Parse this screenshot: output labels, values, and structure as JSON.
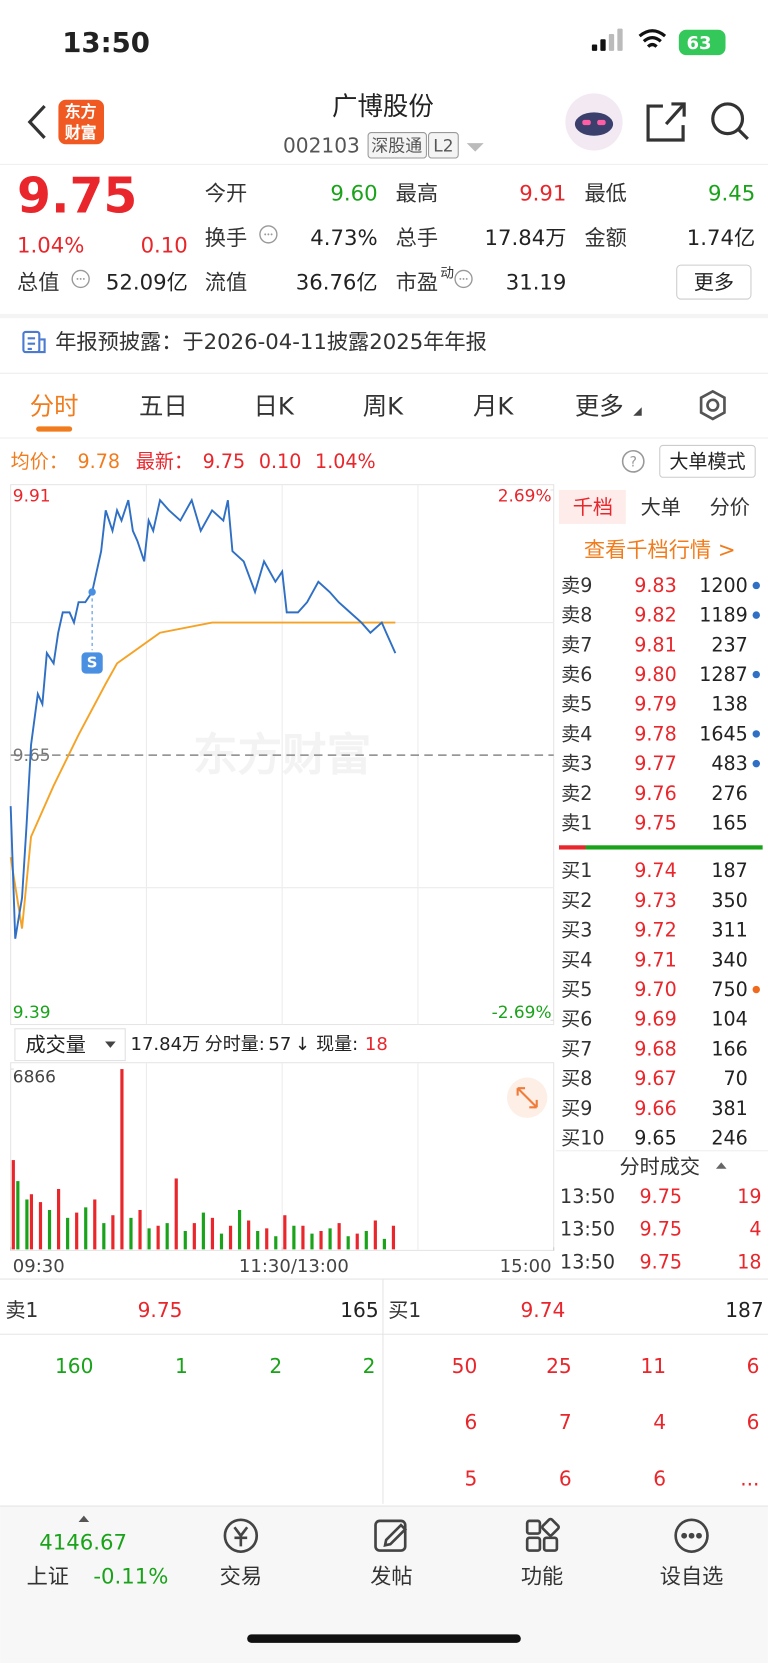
{
  "status_bar": {
    "time": "13:50",
    "battery": "63"
  },
  "header": {
    "logo": [
      "东方",
      "财富"
    ],
    "title": "广博股份",
    "code": "002103",
    "tags": [
      "深股通",
      "L2"
    ]
  },
  "quote": {
    "price": "9.75",
    "change_pct": "1.04%",
    "change": "0.10",
    "more_button": "更多",
    "rows": [
      [
        {
          "label": "今开",
          "value": "9.60",
          "color": "#1aa31a"
        },
        {
          "label": "最高",
          "value": "9.91",
          "color": "#e8262b"
        },
        {
          "label": "最低",
          "value": "9.45",
          "color": "#1aa31a"
        }
      ],
      [
        {
          "label": "换手",
          "value": "4.73%",
          "info": true
        },
        {
          "label": "总手",
          "value": "17.84万"
        },
        {
          "label": "金额",
          "value": "1.74亿"
        }
      ],
      [
        {
          "label": "总值",
          "value": "52.09亿",
          "info": true
        },
        {
          "label": "流值",
          "value": "36.76亿"
        },
        {
          "label": "市盈",
          "sup": "动",
          "value": "31.19",
          "info": true
        }
      ]
    ]
  },
  "notice": {
    "text": "年报预披露：于2026-04-11披露2025年年报"
  },
  "tabs": {
    "items": [
      "分时",
      "五日",
      "日K",
      "周K",
      "月K",
      "更多"
    ],
    "active": 0
  },
  "info_line": {
    "avg_label": "均价：",
    "avg": "9.78",
    "latest_label": "最新：",
    "latest": "9.75",
    "change": "0.10",
    "change_pct": "1.04%",
    "mode_button": "大单模式"
  },
  "volume_bar": {
    "selector": "成交量",
    "total": "17.84万",
    "minute_label": "分时量:",
    "minute": "57",
    "trend": "↓",
    "now_label": "现量:",
    "now": "18"
  },
  "chart_data": [
    {
      "type": "line",
      "watermark": "东方财富",
      "xlim": [
        0,
        240
      ],
      "ylim": [
        9.39,
        9.91
      ],
      "yticks": [
        9.39,
        9.65,
        9.91
      ],
      "y2lim": [
        -2.69,
        2.69
      ],
      "y2ticks": [
        {
          "value": -2.69,
          "label": "-2.69%"
        },
        {
          "value": 2.69,
          "label": "2.69%"
        }
      ],
      "xticks": [
        {
          "value": 0,
          "label": "09:30"
        },
        {
          "value": 120,
          "label": "11:30/13:00"
        },
        {
          "value": 240,
          "label": "15:00"
        }
      ],
      "series": [
        {
          "color": "#2f6fc4",
          "x": [
            0,
            2,
            5,
            7,
            9,
            12,
            14,
            16,
            19,
            21,
            23,
            26,
            28,
            30,
            33,
            36,
            40,
            42,
            45,
            47,
            49,
            52,
            54,
            56,
            59,
            61,
            63,
            66,
            70,
            75,
            80,
            84,
            89,
            94,
            96,
            98,
            103,
            108,
            112,
            117,
            120,
            122,
            127,
            131,
            136,
            141,
            145,
            150,
            155,
            159,
            164,
            166,
            170
          ],
          "values": [
            9.6,
            9.47,
            9.51,
            9.58,
            9.66,
            9.71,
            9.7,
            9.75,
            9.74,
            9.77,
            9.79,
            9.79,
            9.78,
            9.8,
            9.8,
            9.81,
            9.85,
            9.89,
            9.87,
            9.89,
            9.88,
            9.9,
            9.87,
            9.86,
            9.84,
            9.88,
            9.87,
            9.9,
            9.89,
            9.88,
            9.9,
            9.87,
            9.89,
            9.88,
            9.9,
            9.85,
            9.84,
            9.81,
            9.84,
            9.82,
            9.83,
            9.79,
            9.79,
            9.8,
            9.82,
            9.81,
            9.8,
            9.79,
            9.78,
            9.77,
            9.78,
            9.77,
            9.75
          ]
        },
        {
          "color": "#f5a326",
          "x": [
            0,
            5,
            9,
            19,
            30,
            42,
            47,
            66,
            89,
            120,
            170
          ],
          "values": [
            9.55,
            9.48,
            9.57,
            9.62,
            9.67,
            9.72,
            9.74,
            9.77,
            9.78,
            9.78,
            9.78
          ]
        }
      ],
      "marker": {
        "label": "S",
        "x": 36
      }
    },
    {
      "type": "bar",
      "xlim": [
        0,
        240
      ],
      "ylim": [
        0,
        6866
      ],
      "yticks": [
        6866
      ],
      "series": [
        {
          "color": "#e8262b",
          "x": [
            0,
            8,
            12,
            20,
            28,
            36,
            44,
            48,
            56,
            64,
            72,
            80,
            88,
            96,
            104,
            112,
            120,
            128,
            136,
            144,
            152,
            160,
            168
          ],
          "values": [
            3400,
            2100,
            1800,
            2300,
            1400,
            1900,
            1300,
            6866,
            1500,
            900,
            2700,
            1000,
            1200,
            900,
            1100,
            800,
            1300,
            900,
            700,
            1000,
            600,
            1100,
            900
          ]
        },
        {
          "color": "#1aa31a",
          "x": [
            2,
            6,
            16,
            24,
            32,
            40,
            52,
            60,
            68,
            76,
            84,
            92,
            100,
            108,
            116,
            124,
            132,
            140,
            148,
            156,
            164
          ],
          "values": [
            2600,
            1900,
            1500,
            1200,
            1600,
            1000,
            1200,
            800,
            1000,
            700,
            1400,
            600,
            1500,
            700,
            500,
            900,
            600,
            800,
            500,
            700,
            400
          ]
        }
      ]
    }
  ],
  "order_book": {
    "tabs": [
      "千档",
      "大单",
      "分价"
    ],
    "link": "查看千档行情 >",
    "asks": [
      {
        "label": "卖9",
        "price": "9.83",
        "volume": "1200",
        "dot": "#2f6fc4"
      },
      {
        "label": "卖8",
        "price": "9.82",
        "volume": "1189",
        "dot": "#2f6fc4"
      },
      {
        "label": "卖7",
        "price": "9.81",
        "volume": "237"
      },
      {
        "label": "卖6",
        "price": "9.80",
        "volume": "1287",
        "dot": "#2f6fc4"
      },
      {
        "label": "卖5",
        "price": "9.79",
        "volume": "138"
      },
      {
        "label": "卖4",
        "price": "9.78",
        "volume": "1645",
        "dot": "#2f6fc4"
      },
      {
        "label": "卖3",
        "price": "9.77",
        "volume": "483",
        "dot": "#2f6fc4"
      },
      {
        "label": "卖2",
        "price": "9.76",
        "volume": "276"
      },
      {
        "label": "卖1",
        "price": "9.75",
        "volume": "165"
      }
    ],
    "bids": [
      {
        "label": "买1",
        "price": "9.74",
        "volume": "187"
      },
      {
        "label": "买2",
        "price": "9.73",
        "volume": "350"
      },
      {
        "label": "买3",
        "price": "9.72",
        "volume": "311"
      },
      {
        "label": "买4",
        "price": "9.71",
        "volume": "340"
      },
      {
        "label": "买5",
        "price": "9.70",
        "volume": "750",
        "dot": "#f06a1d"
      },
      {
        "label": "买6",
        "price": "9.69",
        "volume": "104"
      },
      {
        "label": "买7",
        "price": "9.68",
        "volume": "166"
      },
      {
        "label": "买8",
        "price": "9.67",
        "volume": "70"
      },
      {
        "label": "买9",
        "price": "9.66",
        "volume": "381"
      },
      {
        "label": "买10",
        "price": "9.65",
        "volume": "246",
        "color": "#222222"
      }
    ]
  },
  "trades": {
    "title": "分时成交",
    "rows": [
      {
        "time": "13:50",
        "price": "9.75",
        "volume": "19"
      },
      {
        "time": "13:50",
        "price": "9.75",
        "volume": "4"
      },
      {
        "time": "13:50",
        "price": "9.75",
        "volume": "18"
      }
    ]
  },
  "queue": {
    "sell": {
      "label": "卖1",
      "price": "9.75",
      "volume": "165",
      "orders": [
        "160",
        "1",
        "2",
        "2"
      ]
    },
    "buy": {
      "label": "买1",
      "price": "9.74",
      "volume": "187",
      "orders": [
        "50",
        "25",
        "11",
        "6",
        "6",
        "7",
        "4",
        "6",
        "5",
        "6",
        "6",
        "..."
      ]
    }
  },
  "nav": {
    "index": {
      "value": "4146.67",
      "name": "上证",
      "change": "-0.11%"
    },
    "items": [
      "交易",
      "发帖",
      "功能",
      "设自选"
    ]
  }
}
